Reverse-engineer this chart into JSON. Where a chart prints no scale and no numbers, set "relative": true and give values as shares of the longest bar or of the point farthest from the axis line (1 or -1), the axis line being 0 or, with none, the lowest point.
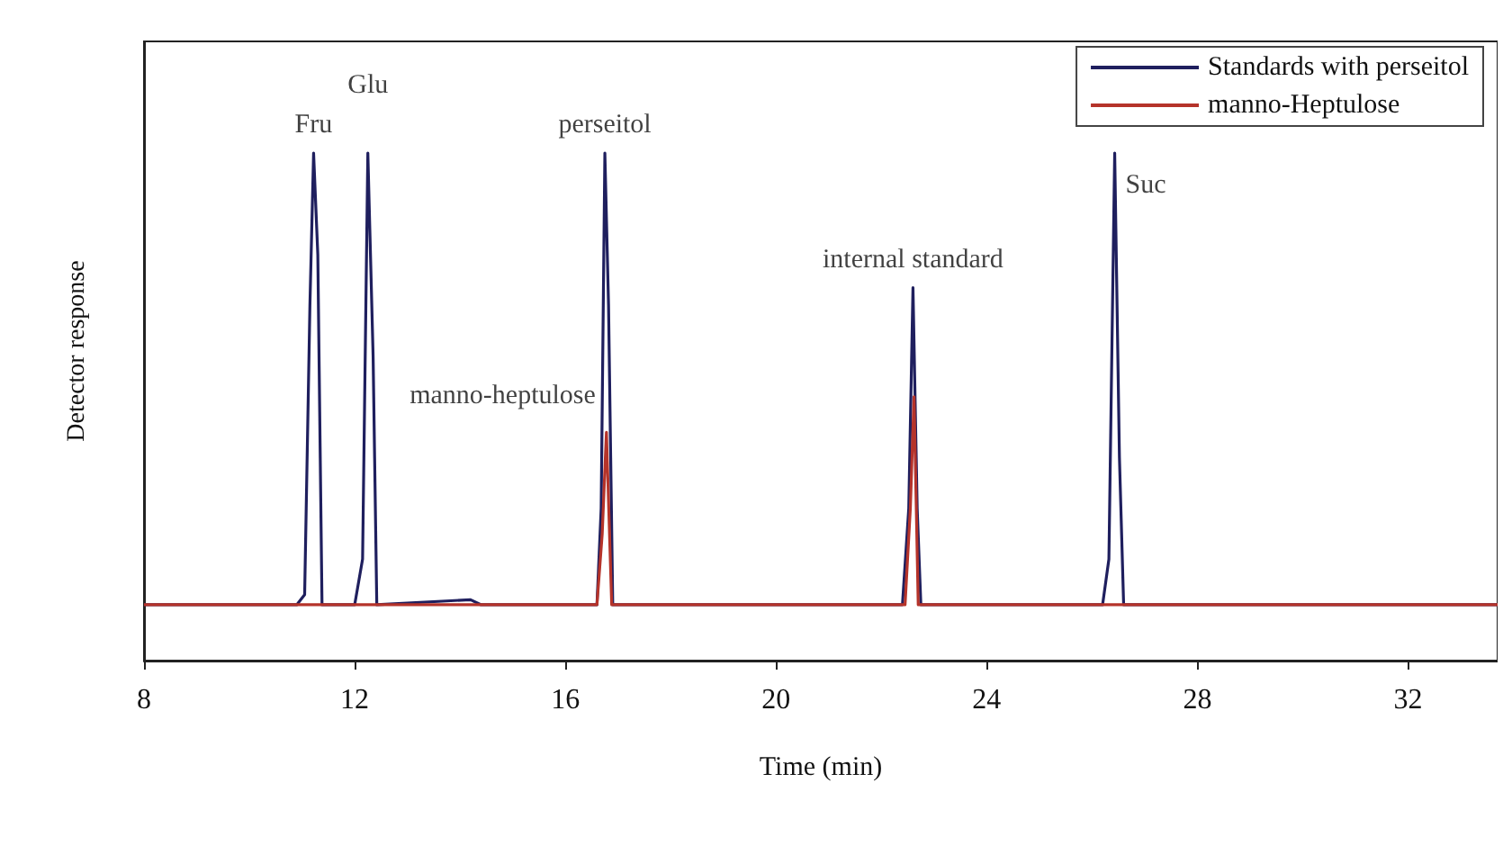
{
  "chart_data": {
    "type": "line",
    "relative": true,
    "xlabel": "Time (min)",
    "ylabel": "Detector response",
    "xlim": [
      8,
      33.7
    ],
    "xticks": [
      8,
      12,
      16,
      20,
      24,
      28,
      32
    ],
    "grid": false,
    "legend": "top right",
    "marker": "none",
    "line_style": "solid",
    "series": [
      {
        "name": "Standards with perseitol",
        "color": "#1f1f5e",
        "x": [
          8,
          10.9,
          11.05,
          11.15,
          11.22,
          11.3,
          11.38,
          12.0,
          12.15,
          12.25,
          12.35,
          12.42,
          14.2,
          14.4,
          16.6,
          16.68,
          16.75,
          16.82,
          16.9,
          22.4,
          22.52,
          22.6,
          22.68,
          22.75,
          26.2,
          26.32,
          26.43,
          26.52,
          26.6,
          33.7
        ],
        "values": [
          0.11,
          0.11,
          0.13,
          0.7,
          1.0,
          0.8,
          0.11,
          0.11,
          0.2,
          1.0,
          0.6,
          0.11,
          0.12,
          0.11,
          0.11,
          0.3,
          1.0,
          0.7,
          0.11,
          0.11,
          0.3,
          0.735,
          0.3,
          0.11,
          0.11,
          0.2,
          1.0,
          0.4,
          0.11,
          0.11
        ]
      },
      {
        "name": "manno-Heptulose",
        "color": "#b5332a",
        "x": [
          8,
          16.6,
          16.7,
          16.78,
          16.88,
          22.45,
          22.55,
          22.62,
          22.7,
          33.7
        ],
        "values": [
          0.11,
          0.11,
          0.25,
          0.45,
          0.11,
          0.11,
          0.3,
          0.52,
          0.11,
          0.11
        ]
      }
    ],
    "annotations": [
      {
        "text": "Fru",
        "x": 11.22,
        "y": 1.0
      },
      {
        "text": "Glu",
        "x": 12.25,
        "y": 1.0
      },
      {
        "text": "perseitol",
        "x": 16.75,
        "y": 1.0
      },
      {
        "text": "manno-heptulose",
        "x": 16.78,
        "y": 0.45
      },
      {
        "text": "internal standard",
        "x": 22.6,
        "y": 0.735
      },
      {
        "text": "Suc",
        "x": 26.43,
        "y": 1.0
      }
    ]
  }
}
